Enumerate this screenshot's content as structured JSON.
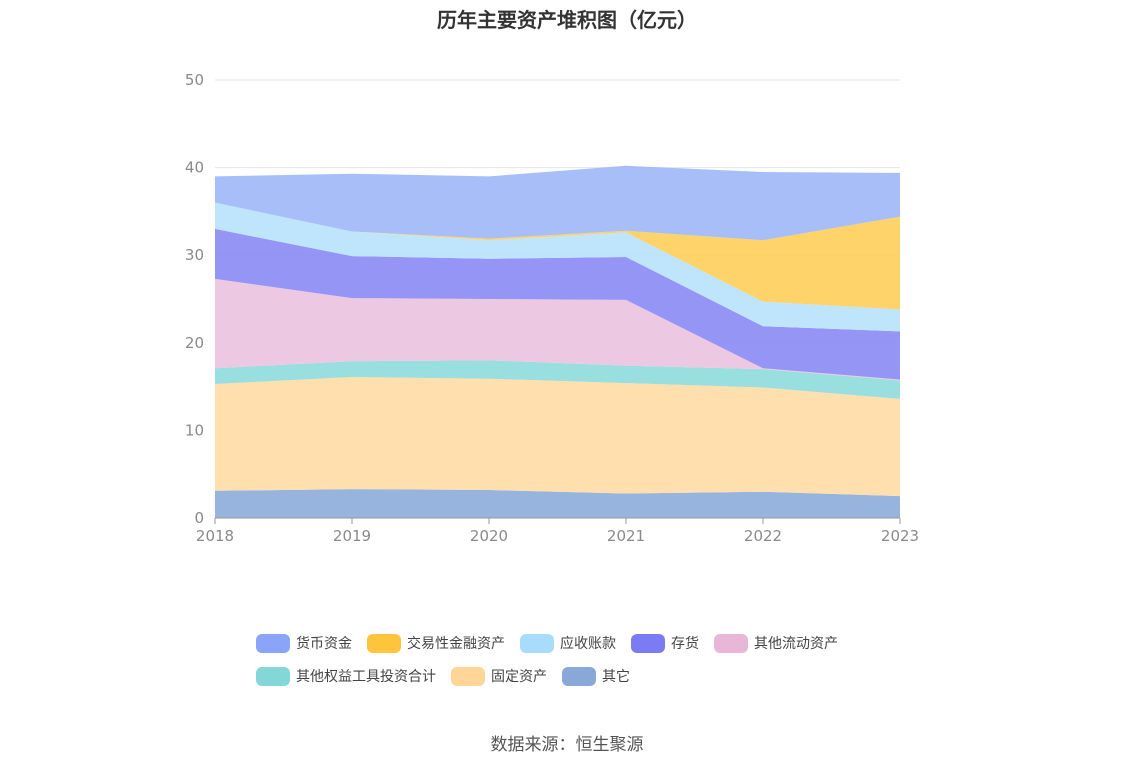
{
  "chart_data": {
    "type": "area",
    "stacked": true,
    "title": "历年主要资产堆积图（亿元）",
    "x": [
      "2018",
      "2019",
      "2020",
      "2021",
      "2022",
      "2023"
    ],
    "ylim": [
      0,
      50
    ],
    "yticks": [
      "0",
      "10",
      "20",
      "30",
      "40",
      "50"
    ],
    "grid": true,
    "legend_position": "bottom",
    "series": [
      {
        "name": "其它",
        "color": "#8eaedb",
        "values": [
          3.1,
          3.3,
          3.2,
          2.8,
          3.0,
          2.5
        ]
      },
      {
        "name": "固定资产",
        "color": "#ffdca6",
        "values": [
          12.2,
          12.8,
          12.7,
          12.6,
          11.9,
          11.1
        ]
      },
      {
        "name": "其他权益工具投资合计",
        "color": "#90dcdc",
        "values": [
          1.8,
          1.8,
          2.1,
          2.0,
          2.1,
          2.1
        ]
      },
      {
        "name": "其他流动资产",
        "color": "#ecc3e0",
        "values": [
          10.2,
          7.2,
          7.0,
          7.5,
          0.1,
          0.1
        ]
      },
      {
        "name": "存货",
        "color": "#8c8cf4",
        "values": [
          5.7,
          4.8,
          4.6,
          4.9,
          4.8,
          5.5
        ]
      },
      {
        "name": "应收账款",
        "color": "#b8e3fb",
        "values": [
          3.0,
          2.8,
          2.1,
          2.8,
          2.8,
          2.5
        ]
      },
      {
        "name": "交易性金融资产",
        "color": "#fecf5c",
        "values": [
          0.0,
          0.0,
          0.2,
          0.2,
          7.0,
          10.6
        ]
      },
      {
        "name": "货币资金",
        "color": "#a0b8f8",
        "values": [
          3.0,
          6.6,
          7.1,
          7.4,
          7.8,
          5.0
        ]
      }
    ]
  },
  "legend": {
    "row1": [
      {
        "label": "货币资金",
        "color": "#8aa4f8"
      },
      {
        "label": "交易性金融资产",
        "color": "#fec43c"
      },
      {
        "label": "应收账款",
        "color": "#a8dcfa"
      },
      {
        "label": "存货",
        "color": "#7b7bf3"
      },
      {
        "label": "其他流动资产",
        "color": "#e8b7d8"
      }
    ],
    "row2": [
      {
        "label": "其他权益工具投资合计",
        "color": "#84d7d7"
      },
      {
        "label": "固定资产",
        "color": "#ffd698"
      },
      {
        "label": "其它",
        "color": "#88a8d8"
      }
    ]
  },
  "source": "数据来源：恒生聚源"
}
